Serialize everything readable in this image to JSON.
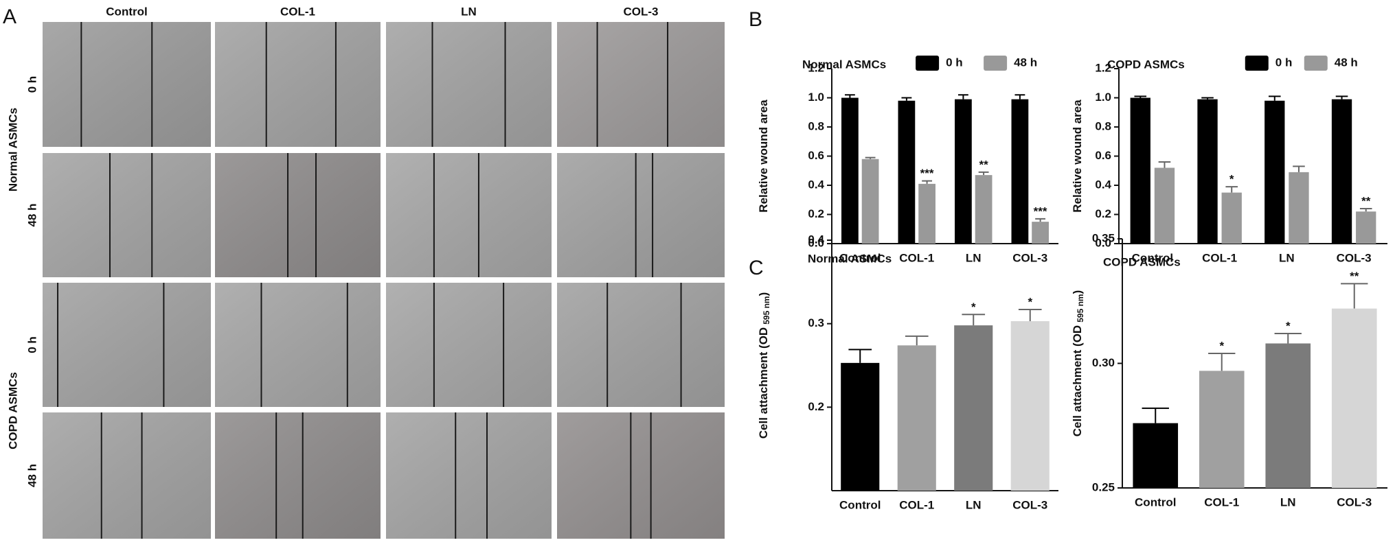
{
  "panel_labels": [
    "A",
    "B",
    "C"
  ],
  "micrographs": {
    "columns": [
      "Control",
      "COL-1",
      "LN",
      "COL-3"
    ],
    "groups": [
      {
        "name": "Normal ASMCs",
        "rows": [
          "0 h",
          "48 h"
        ]
      },
      {
        "name": "COPD ASMCs",
        "rows": [
          "0 h",
          "48 h"
        ]
      }
    ]
  },
  "chart_data": [
    {
      "type": "bar",
      "title": "Normal ASMCs",
      "y_label": "Relative wound area",
      "categories": [
        "Control",
        "COL-1",
        "LN",
        "COL-3"
      ],
      "series": [
        {
          "name": "0 h",
          "color": "#000000",
          "values": [
            1.0,
            0.98,
            0.99,
            0.99
          ],
          "errors": [
            0.02,
            0.02,
            0.03,
            0.03
          ],
          "annotations": [
            null,
            null,
            null,
            null
          ]
        },
        {
          "name": "48 h",
          "color": "#999999",
          "values": [
            0.58,
            0.41,
            0.47,
            0.15
          ],
          "errors": [
            0.01,
            0.02,
            0.02,
            0.02
          ],
          "annotations": [
            null,
            "***",
            "**",
            "***"
          ]
        }
      ],
      "ylim": [
        0,
        1.2
      ],
      "yticks": [
        {
          "value": 0,
          "label": "0.0"
        },
        0.2,
        0.4,
        0.6,
        0.8,
        {
          "value": 1,
          "label": "1.0"
        },
        1.2
      ]
    },
    {
      "type": "bar",
      "title": "COPD ASMCs",
      "y_label": "Relative wound area",
      "categories": [
        "Control",
        "COL-1",
        "LN",
        "COL-3"
      ],
      "series": [
        {
          "name": "0 h",
          "color": "#000000",
          "values": [
            1.0,
            0.99,
            0.98,
            0.99
          ],
          "errors": [
            0.01,
            0.01,
            0.03,
            0.02
          ],
          "annotations": [
            null,
            null,
            null,
            null
          ]
        },
        {
          "name": "48 h",
          "color": "#999999",
          "values": [
            0.52,
            0.35,
            0.49,
            0.22
          ],
          "errors": [
            0.04,
            0.04,
            0.04,
            0.02
          ],
          "annotations": [
            null,
            "*",
            null,
            "**"
          ]
        }
      ],
      "ylim": [
        0,
        1.2
      ],
      "yticks": [
        {
          "value": 0,
          "label": "0.0"
        },
        0.2,
        0.4,
        0.6,
        0.8,
        {
          "value": 1,
          "label": "1.0"
        },
        1.2
      ]
    },
    {
      "type": "bar",
      "title": "Normal ASMCs",
      "y_label": "Cell attachment (OD",
      "y_label_sub": "595 nm",
      "y_label_end": ")",
      "categories": [
        "Control",
        "COL-1",
        "LN",
        "COL-3"
      ],
      "values": [
        0.253,
        0.274,
        0.298,
        0.303
      ],
      "errors": [
        0.016,
        0.011,
        0.013,
        0.014
      ],
      "colors": [
        "#000000",
        "#a0a0a0",
        "#7b7b7b",
        "#d6d6d6"
      ],
      "annotations": [
        null,
        null,
        "*",
        "*"
      ],
      "ylim": [
        0.1,
        0.4
      ],
      "yticks": [
        0.2,
        0.3,
        0.4
      ]
    },
    {
      "type": "bar",
      "title": "COPD ASMCs",
      "y_label": "Cell attachment (OD",
      "y_label_sub": "595 nm",
      "y_label_end": ")",
      "categories": [
        "Control",
        "COL-1",
        "LN",
        "COL-3"
      ],
      "values": [
        0.276,
        0.297,
        0.308,
        0.322
      ],
      "errors": [
        0.006,
        0.007,
        0.004,
        0.01
      ],
      "colors": [
        "#000000",
        "#a0a0a0",
        "#7b7b7b",
        "#d6d6d6"
      ],
      "annotations": [
        null,
        "*",
        "*",
        "**"
      ],
      "ylim": [
        0.25,
        0.35
      ],
      "yticks": [
        0.25,
        {
          "value": 0.3,
          "label": "0.30"
        },
        0.35
      ]
    }
  ]
}
